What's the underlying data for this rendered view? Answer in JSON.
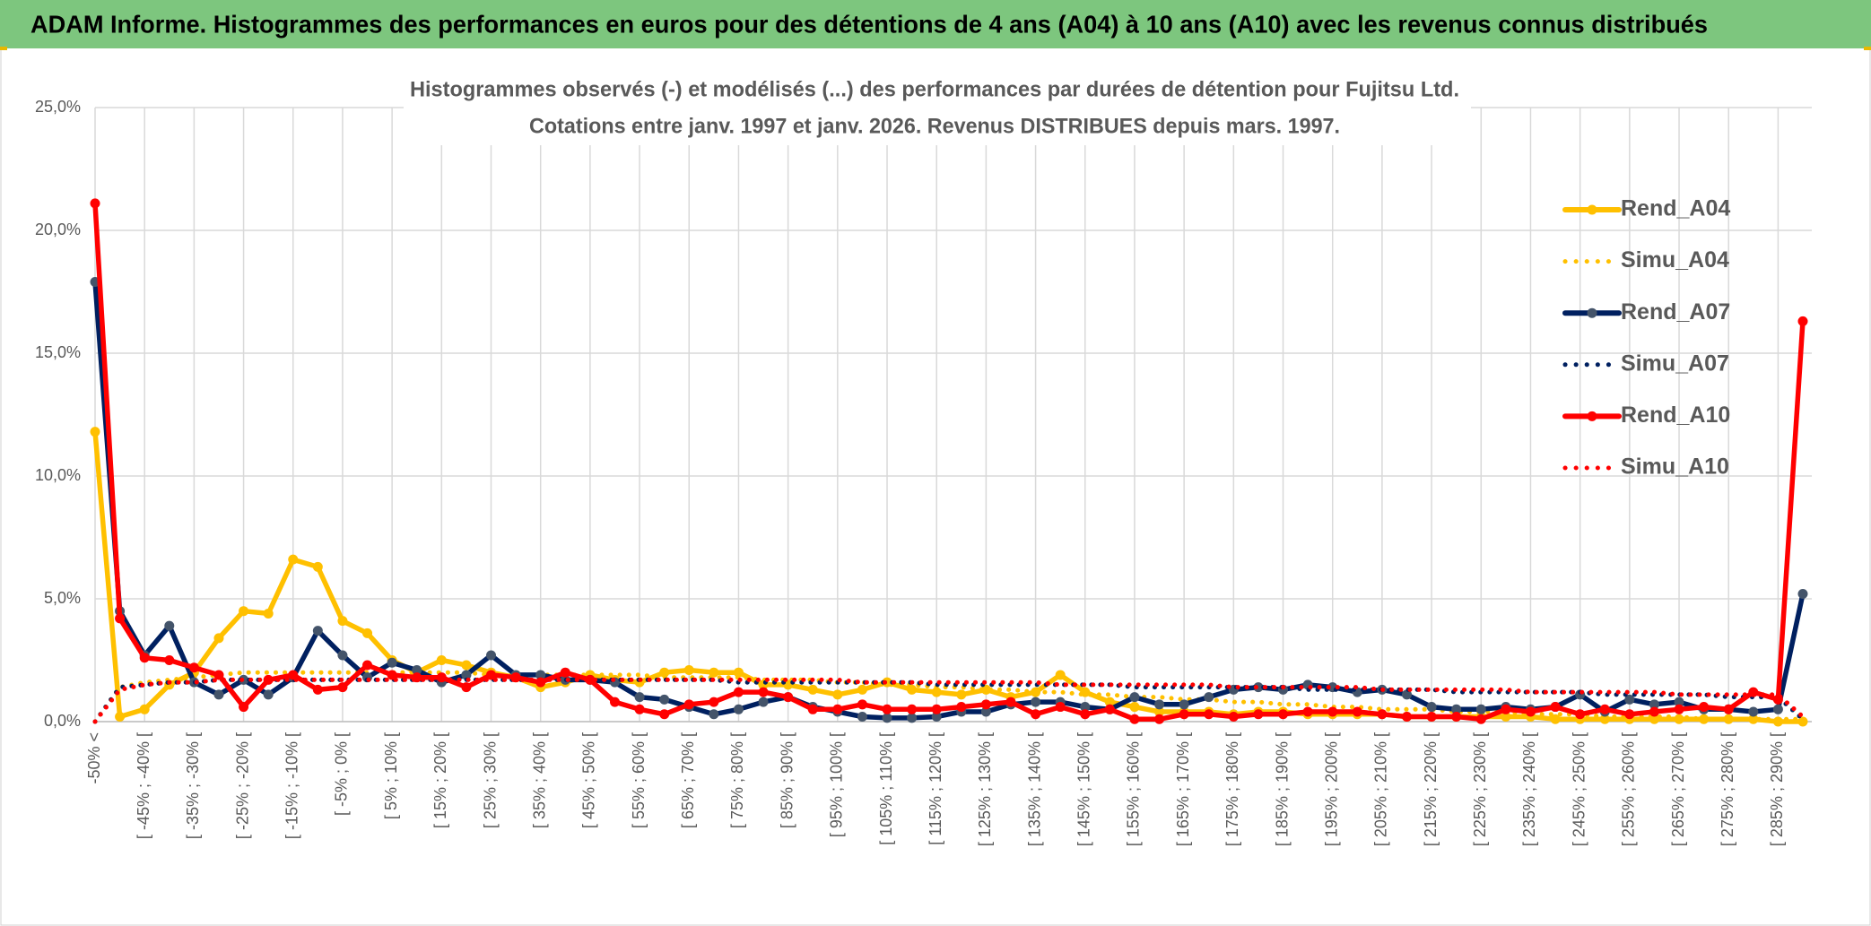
{
  "header": {
    "title": "ADAM Informe. Histogrammes des performances en euros pour des détentions de 4 ans (A04) à 10 ans (A10) avec les revenus connus distribués"
  },
  "chart_data": {
    "type": "line",
    "title": "Histogrammes observés (-) et modélisés (...) des performances par durées de détention pour Fujitsu Ltd.",
    "subtitle": "Cotations entre janv. 1997 et janv. 2026. Revenus DISTRIBUES depuis mars. 1997.",
    "categories": [
      "-50% <",
      null,
      "[ -45% ; -40% [",
      null,
      "[ -35% ; -30% [",
      null,
      "[ -25% ; -20% [",
      null,
      "[ -15% ; -10% [",
      null,
      "[ -5% ; 0% [",
      null,
      "[ 5% ; 10% [",
      null,
      "[ 15% ; 20% [",
      null,
      "[ 25% ; 30% [",
      null,
      "[ 35% ; 40% [",
      null,
      "[ 45% ; 50% [",
      null,
      "[ 55% ; 60% [",
      null,
      "[ 65% ; 70% [",
      null,
      "[ 75% ; 80% [",
      null,
      "[ 85% ; 90% [",
      null,
      "[ 95% ; 100% [",
      null,
      "[ 105% ; 110% [",
      null,
      "[ 115% ; 120% [",
      null,
      "[ 125% ; 130% [",
      null,
      "[ 135% ; 140% [",
      null,
      "[ 145% ; 150% [",
      null,
      "[ 155% ; 160% [",
      null,
      "[ 165% ; 170% [",
      null,
      "[ 175% ; 180% [",
      null,
      "[ 185% ; 190% [",
      null,
      "[ 195% ; 200% [",
      null,
      "[ 205% ; 210% [",
      null,
      "[ 215% ; 220% [",
      null,
      "[ 225% ; 230% [",
      null,
      "[ 235% ; 240% [",
      null,
      "[ 245% ; 250% [",
      null,
      "[ 255% ; 260% [",
      null,
      "[ 265% ; 270% [",
      null,
      "[ 275% ; 280% [",
      null,
      "[ 285% ; 290% [",
      null
    ],
    "ylim": [
      0,
      25
    ],
    "yticks": [
      {
        "value": 0,
        "label": "0,0%"
      },
      {
        "value": 5,
        "label": "5,0%"
      },
      {
        "value": 10,
        "label": "10,0%"
      },
      {
        "value": 15,
        "label": "15,0%"
      },
      {
        "value": 20,
        "label": "20,0%"
      },
      {
        "value": 25,
        "label": "25,0%"
      }
    ],
    "grid": true,
    "legend": "right",
    "series": [
      {
        "name": "Rend_A04",
        "color": "#FFC000",
        "line_style": "solid",
        "markers": true,
        "values": [
          11.8,
          0.2,
          0.5,
          1.5,
          2.0,
          3.4,
          4.5,
          4.4,
          6.6,
          6.3,
          4.1,
          3.6,
          2.5,
          2.0,
          2.5,
          2.3,
          2.0,
          1.8,
          1.4,
          1.6,
          1.9,
          1.7,
          1.6,
          2.0,
          2.1,
          2.0,
          2.0,
          1.5,
          1.5,
          1.3,
          1.1,
          1.3,
          1.6,
          1.3,
          1.2,
          1.1,
          1.3,
          1.0,
          1.2,
          1.9,
          1.2,
          0.8,
          0.6,
          0.4,
          0.4,
          0.4,
          0.3,
          0.4,
          0.4,
          0.3,
          0.3,
          0.3,
          0.3,
          0.2,
          0.2,
          0.2,
          0.2,
          0.2,
          0.2,
          0.1,
          0.1,
          0.1,
          0.1,
          0.1,
          0.1,
          0.1,
          0.1,
          0.1,
          0.0,
          0.0
        ]
      },
      {
        "name": "Simu_A04",
        "color": "#FFC000",
        "line_style": "dotted",
        "markers": false,
        "values": [
          0,
          1.4,
          1.6,
          1.7,
          1.8,
          1.9,
          2.0,
          2.0,
          2.0,
          2.0,
          2.0,
          2.0,
          2.0,
          2.0,
          2.0,
          2.0,
          1.9,
          1.9,
          1.9,
          1.9,
          1.9,
          1.9,
          1.9,
          1.8,
          1.8,
          1.8,
          1.8,
          1.7,
          1.7,
          1.7,
          1.6,
          1.6,
          1.5,
          1.5,
          1.4,
          1.4,
          1.3,
          1.3,
          1.2,
          1.2,
          1.1,
          1.1,
          1.0,
          1.0,
          0.9,
          0.9,
          0.8,
          0.8,
          0.7,
          0.7,
          0.6,
          0.6,
          0.5,
          0.5,
          0.5,
          0.4,
          0.4,
          0.4,
          0.3,
          0.3,
          0.3,
          0.2,
          0.2,
          0.2,
          0.2,
          0.1,
          0.1,
          0.1,
          0.1,
          0.1
        ]
      },
      {
        "name": "Rend_A07",
        "color": "#002060",
        "marker_color": "#44546A",
        "line_style": "solid",
        "markers": true,
        "values": [
          17.9,
          4.5,
          2.7,
          3.9,
          1.6,
          1.1,
          1.7,
          1.1,
          1.8,
          3.7,
          2.7,
          1.8,
          2.4,
          2.1,
          1.6,
          1.9,
          2.7,
          1.9,
          1.9,
          1.7,
          1.7,
          1.6,
          1.0,
          0.9,
          0.6,
          0.3,
          0.5,
          0.8,
          1.0,
          0.6,
          0.4,
          0.2,
          0.15,
          0.15,
          0.2,
          0.4,
          0.4,
          0.7,
          0.8,
          0.8,
          0.6,
          0.5,
          1.0,
          0.7,
          0.7,
          1.0,
          1.3,
          1.4,
          1.3,
          1.5,
          1.4,
          1.2,
          1.3,
          1.1,
          0.6,
          0.5,
          0.5,
          0.6,
          0.5,
          0.6,
          1.1,
          0.4,
          0.9,
          0.7,
          0.8,
          0.5,
          0.5,
          0.4,
          0.5,
          5.2
        ]
      },
      {
        "name": "Simu_A07",
        "color": "#002060",
        "line_style": "dotted",
        "markers": false,
        "values": [
          0,
          1.4,
          1.5,
          1.6,
          1.6,
          1.7,
          1.7,
          1.7,
          1.7,
          1.7,
          1.7,
          1.7,
          1.7,
          1.7,
          1.7,
          1.7,
          1.7,
          1.7,
          1.7,
          1.7,
          1.7,
          1.7,
          1.7,
          1.7,
          1.7,
          1.7,
          1.6,
          1.6,
          1.6,
          1.6,
          1.6,
          1.6,
          1.6,
          1.6,
          1.5,
          1.5,
          1.5,
          1.5,
          1.5,
          1.5,
          1.5,
          1.5,
          1.4,
          1.4,
          1.4,
          1.4,
          1.4,
          1.4,
          1.4,
          1.3,
          1.3,
          1.3,
          1.3,
          1.3,
          1.3,
          1.2,
          1.2,
          1.2,
          1.2,
          1.2,
          1.2,
          1.1,
          1.1,
          1.1,
          1.1,
          1.1,
          1.0,
          1.0,
          1.0,
          0.1
        ]
      },
      {
        "name": "Rend_A10",
        "color": "#FF0000",
        "line_style": "solid",
        "markers": true,
        "values": [
          21.1,
          4.2,
          2.6,
          2.5,
          2.2,
          1.9,
          0.6,
          1.7,
          1.9,
          1.3,
          1.4,
          2.3,
          1.9,
          1.8,
          1.8,
          1.4,
          1.9,
          1.8,
          1.6,
          2.0,
          1.7,
          0.8,
          0.5,
          0.3,
          0.7,
          0.8,
          1.2,
          1.2,
          1.0,
          0.5,
          0.5,
          0.7,
          0.5,
          0.5,
          0.5,
          0.6,
          0.7,
          0.8,
          0.3,
          0.6,
          0.3,
          0.5,
          0.1,
          0.1,
          0.3,
          0.3,
          0.2,
          0.3,
          0.3,
          0.4,
          0.4,
          0.4,
          0.3,
          0.2,
          0.2,
          0.2,
          0.1,
          0.5,
          0.4,
          0.6,
          0.3,
          0.5,
          0.3,
          0.4,
          0.5,
          0.6,
          0.5,
          1.2,
          0.9,
          16.3
        ]
      },
      {
        "name": "Simu_A10",
        "color": "#FF0000",
        "line_style": "dotted",
        "markers": false,
        "values": [
          0,
          1.3,
          1.5,
          1.6,
          1.6,
          1.7,
          1.7,
          1.7,
          1.7,
          1.7,
          1.7,
          1.7,
          1.7,
          1.7,
          1.7,
          1.7,
          1.7,
          1.7,
          1.7,
          1.7,
          1.7,
          1.7,
          1.7,
          1.7,
          1.7,
          1.7,
          1.7,
          1.7,
          1.7,
          1.7,
          1.7,
          1.6,
          1.6,
          1.6,
          1.6,
          1.6,
          1.6,
          1.6,
          1.6,
          1.5,
          1.5,
          1.5,
          1.5,
          1.5,
          1.5,
          1.5,
          1.4,
          1.4,
          1.4,
          1.4,
          1.4,
          1.4,
          1.3,
          1.3,
          1.3,
          1.3,
          1.3,
          1.3,
          1.2,
          1.2,
          1.2,
          1.2,
          1.2,
          1.2,
          1.1,
          1.1,
          1.1,
          1.1,
          1.1,
          0.2
        ]
      }
    ]
  }
}
